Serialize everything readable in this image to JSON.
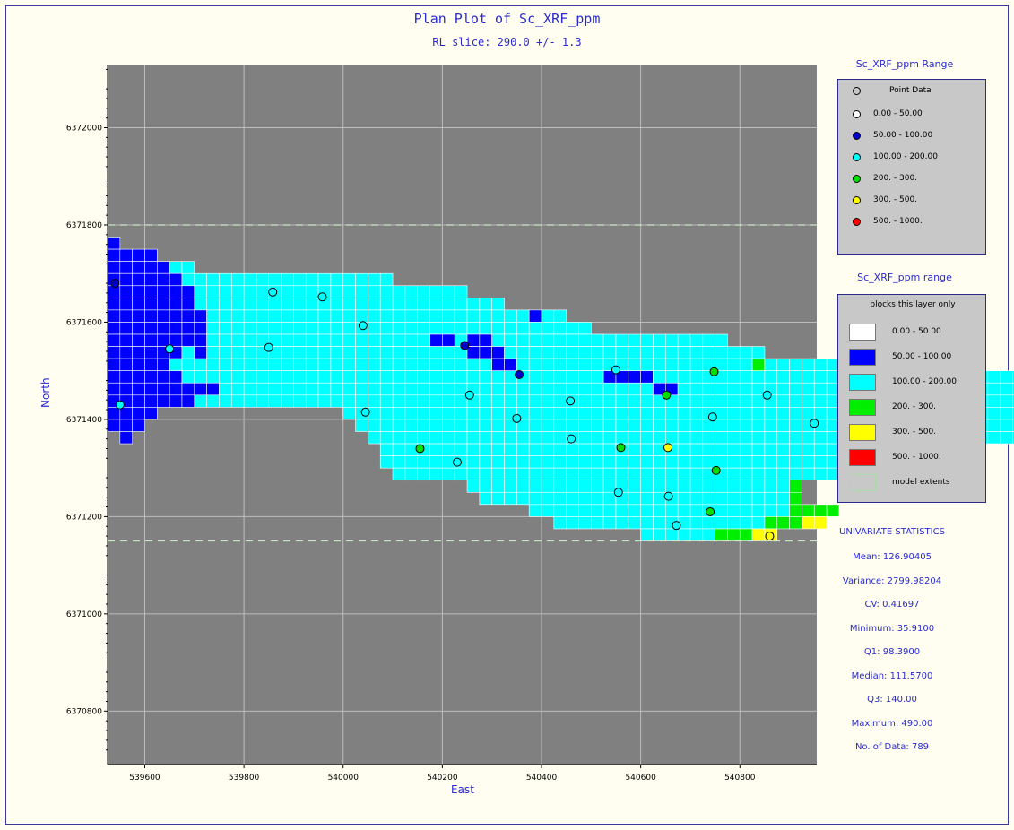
{
  "header": {
    "title": "Plan Plot of Sc_XRF_ppm",
    "subtitle": "RL slice: 290.0 +/- 1.3"
  },
  "axes": {
    "xlabel": "East",
    "ylabel": "North"
  },
  "legend_points": {
    "title": "Sc_XRF_ppm  Range",
    "header": "Point Data",
    "items": [
      {
        "label": "0.00 - 50.00",
        "color": "#ffffff"
      },
      {
        "label": "50.00 - 100.00",
        "color": "#0000cc"
      },
      {
        "label": "100.00 - 200.00",
        "color": "#00ffff"
      },
      {
        "label": "200. - 300.",
        "color": "#00e000"
      },
      {
        "label": "300. - 500.",
        "color": "#ffff00"
      },
      {
        "label": "500. - 1000.",
        "color": "#ff0000"
      }
    ]
  },
  "legend_blocks": {
    "title": "Sc_XRF_ppm  range",
    "header": "blocks this layer only",
    "items": [
      {
        "label": "0.00 - 50.00",
        "color": "#ffffff"
      },
      {
        "label": "50.00 - 100.00",
        "color": "#0000ff"
      },
      {
        "label": "100.00 - 200.00",
        "color": "#00ffff"
      },
      {
        "label": "200. - 300.",
        "color": "#00ee00"
      },
      {
        "label": "300. - 500.",
        "color": "#ffff00"
      },
      {
        "label": "500. - 1000.",
        "color": "#ff0000"
      },
      {
        "label": "model extents",
        "color": "#c8c8c8"
      }
    ]
  },
  "stats": {
    "title": "UNIVARIATE STATISTICS",
    "lines": [
      "Mean: 126.90405",
      "Variance: 2799.98204",
      "CV: 0.41697",
      "Minimum: 35.9100",
      "Q1: 98.3900",
      "Median: 111.5700",
      "Q3: 140.00",
      "Maximum: 490.00",
      "No. of Data: 789"
    ]
  },
  "chart_data": {
    "type": "scatter",
    "title": "Plan Plot of Sc_XRF_ppm",
    "subtitle": "RL slice: 290.0 +/- 1.3",
    "xlabel": "East",
    "ylabel": "North",
    "xlim": [
      539525,
      540955
    ],
    "ylim": [
      6370690,
      6372130
    ],
    "xticks": [
      539600,
      539800,
      540000,
      540200,
      540400,
      540600,
      540800
    ],
    "yticks": [
      6370800,
      6371000,
      6371200,
      6371400,
      6371600,
      6371800,
      6372000
    ],
    "background": "#808080",
    "grid": true,
    "model_extents_y": [
      6371150,
      6371800
    ],
    "block_size": 25,
    "block_colors": {
      "B": "#0000ff",
      "C": "#00ffff",
      "G": "#00ee00",
      "Y": "#ffff00"
    },
    "block_rows": [
      {
        "y": 6371762.5,
        "x_start": 539537.5,
        "cells": "B"
      },
      {
        "y": 6371737.5,
        "x_start": 539537.5,
        "cells": "BBBB"
      },
      {
        "y": 6371712.5,
        "x_start": 539537.5,
        "cells": "BBBBBCC"
      },
      {
        "y": 6371687.5,
        "x_start": 539537.5,
        "cells": "BBBBBBCCCCCCCCCCCCCCCCC"
      },
      {
        "y": 6371662.5,
        "x_start": 539537.5,
        "cells": "BBBBBBBCCCCCCCCCCCCCCCCCCCCCC"
      },
      {
        "y": 6371637.5,
        "x_start": 539537.5,
        "cells": "BBBBBBBCCCCCCCCCCCCCCCCCCCCCCCCC"
      },
      {
        "y": 6371612.5,
        "x_start": 539537.5,
        "cells": "BBBBBBBBCCCCCCCCCCCCCCCCCCCCCCCCCCBCC"
      },
      {
        "y": 6371587.5,
        "x_start": 539537.5,
        "cells": "BBBBBBBBCCCCCCCCCCCCCCCCCCCCCCCCCCCCCCC"
      },
      {
        "y": 6371562.5,
        "x_start": 539537.5,
        "cells": "BBBBBBBBCCCCCCCCCCCCCCCCCCCCCCCCCCCCCCCC"
      },
      {
        "y": 6371562.5,
        "x_start": 540187.5,
        "cells": "BBCBBCCCCCCCCCCCCCCCCCCC"
      },
      {
        "y": 6371537.5,
        "x_start": 539537.5,
        "cells": "BBBBBBCBCCCCCCCCCCCCCCCCCCCCCCCCCCCCCCCC"
      },
      {
        "y": 6371537.5,
        "x_start": 540212.5,
        "cells": "CCBBBCCCCCCCCCCCCCCCCCCCCC"
      },
      {
        "y": 6371512.5,
        "x_start": 539537.5,
        "cells": "BBBBBCCCCCCCCCCCCCCCCCCCCCCCCCCCCCCCCCCCC"
      },
      {
        "y": 6371512.5,
        "x_start": 540187.5,
        "cells": "CCCCCBBCCCCCCCCCCCCCCCCCCCGCCCCCCCCC"
      },
      {
        "y": 6371487.5,
        "x_start": 539537.5,
        "cells": "BBBBBBCCCCCCCCCCCCCCCCCCCCCCCCCCCCCCCCCCBBBBCCCCCCCCCCCCCCCCCCCCCCCCCCCCCCCCCCCCCCCCCCCCCCCCCCCCCCC"
      },
      {
        "y": 6371462.5,
        "x_start": 539537.5,
        "cells": "BBBBBBBBBCCCCCCCCCCCCCCCCCCCCCCCCCCCCCCCCCCCBBCCCCCCCCCCCCCCCCCCCCCCCCCCCCCCCCCCCCCCCCCCCCCCCCCCCCCCCCC"
      },
      {
        "y": 6371437.5,
        "x_start": 539537.5,
        "cells": "BBBBBBBCCCCCCCCCCCCCCCCCCCCCCCCCCCCCCCCCCCCCCCCCCCCCCCCCCCCCCCCCCCCCCCCCCCCCCCCCCCCCCGCCCCCCCCCCCCCCCCCC"
      },
      {
        "y": 6371412.5,
        "x_start": 539537.5,
        "cells": "BBBB"
      },
      {
        "y": 6371412.5,
        "x_start": 540012.5,
        "cells": "CCCCCCCCCCCCCCCCCCCCCCCCCCCCCCCCCCCCCCCCGGCCCCCCCCCCCCCCCCCCCCCCCCCCCCCCCCCCCCCCCC"
      },
      {
        "y": 6371387.5,
        "x_start": 539537.5,
        "cells": "BBB"
      },
      {
        "y": 6371387.5,
        "x_start": 540037.5,
        "cells": "CCCCCCCCCCCCCCCCCCCCCCCCCCCCCCCCCCCCCCCCCGGCCCCCCCCCCCCCCCCCCCCCCCCCCCCCCCCCC"
      },
      {
        "y": 6371362.5,
        "x_start": 539562.5,
        "cells": "B"
      },
      {
        "y": 6371362.5,
        "x_start": 540062.5,
        "cells": "CCCCCCCCCCCCCCCCCCCCCCCCCCCCCCCCCCCCCCGGGGCCCCCCCCCCCCCC"
      },
      {
        "y": 6371337.5,
        "x_start": 540087.5,
        "cells": "CCCCCCCCCCCCCCCCCCCCCCCCCCCCCCCCCCCCCGGGCCCCCCCC"
      },
      {
        "y": 6371312.5,
        "x_start": 540087.5,
        "cells": "CCCCCCCCCCCCCCCCCCCCCCCCCCCCCCCCCCCCCCGGCCCCC"
      },
      {
        "y": 6371287.5,
        "x_start": 540112.5,
        "cells": "CCCCCCCCCCCCCCCCCCCCCCCCCCCCCCCCCCCCCCCGG"
      },
      {
        "y": 6371262.5,
        "x_start": 540262.5,
        "cells": "CCCCCCCCCCCCCCCCCCCCCCCCCCG"
      },
      {
        "y": 6371237.5,
        "x_start": 540287.5,
        "cells": "CCCCCCCCCCCCCCCCCCCCCCCCCG"
      },
      {
        "y": 6371212.5,
        "x_start": 540387.5,
        "cells": "CCCCCCCCCCCCCCCCCCCCCGGGG"
      },
      {
        "y": 6371187.5,
        "x_start": 540437.5,
        "cells": "CCCCCCCCCCCCCCCCCGGGYY"
      },
      {
        "y": 6371162.5,
        "x_start": 540612.5,
        "cells": "CCCCCCGGGYY"
      }
    ],
    "points": [
      {
        "x": 539540,
        "y": 6371680,
        "c": "#0000cc"
      },
      {
        "x": 539550,
        "y": 6371430,
        "c": "#00ffff"
      },
      {
        "x": 539650,
        "y": 6371545,
        "c": "#00ffff"
      },
      {
        "x": 539850,
        "y": 6371548,
        "c": "#00ffff"
      },
      {
        "x": 539858,
        "y": 6371662,
        "c": "#00ffff"
      },
      {
        "x": 539958,
        "y": 6371652,
        "c": "#00ffff"
      },
      {
        "x": 540040,
        "y": 6371593,
        "c": "#00ffff"
      },
      {
        "x": 540045,
        "y": 6371415,
        "c": "#00ffff"
      },
      {
        "x": 540155,
        "y": 6371340,
        "c": "#00e000"
      },
      {
        "x": 540230,
        "y": 6371312,
        "c": "#00ffff"
      },
      {
        "x": 540245,
        "y": 6371552,
        "c": "#0000cc"
      },
      {
        "x": 540255,
        "y": 6371450,
        "c": "#00ffff"
      },
      {
        "x": 540350,
        "y": 6371402,
        "c": "#00ffff"
      },
      {
        "x": 540355,
        "y": 6371492,
        "c": "#0000cc"
      },
      {
        "x": 540458,
        "y": 6371438,
        "c": "#00ffff"
      },
      {
        "x": 540460,
        "y": 6371360,
        "c": "#00ffff"
      },
      {
        "x": 540550,
        "y": 6371502,
        "c": "#00ffff"
      },
      {
        "x": 540555,
        "y": 6371250,
        "c": "#00ffff"
      },
      {
        "x": 540560,
        "y": 6371342,
        "c": "#00e000"
      },
      {
        "x": 540652,
        "y": 6371450,
        "c": "#00e000"
      },
      {
        "x": 540655,
        "y": 6371342,
        "c": "#ffff00"
      },
      {
        "x": 540656,
        "y": 6371242,
        "c": "#00ffff"
      },
      {
        "x": 540672,
        "y": 6371182,
        "c": "#00ffff"
      },
      {
        "x": 540740,
        "y": 6371210,
        "c": "#00e000"
      },
      {
        "x": 540745,
        "y": 6371405,
        "c": "#00ffff"
      },
      {
        "x": 540748,
        "y": 6371498,
        "c": "#00e000"
      },
      {
        "x": 540752,
        "y": 6371295,
        "c": "#00e000"
      },
      {
        "x": 540855,
        "y": 6371450,
        "c": "#00ffff"
      },
      {
        "x": 540860,
        "y": 6371160,
        "c": "#ffff00"
      },
      {
        "x": 540950,
        "y": 6371392,
        "c": "#00ffff"
      }
    ]
  }
}
